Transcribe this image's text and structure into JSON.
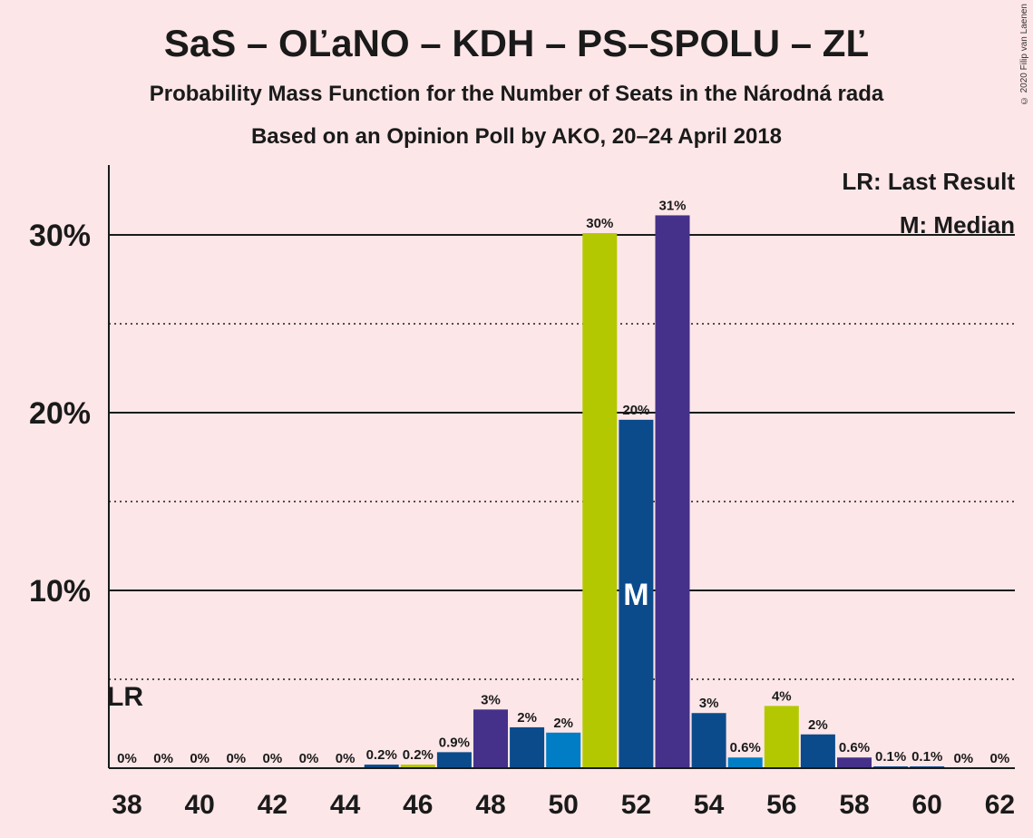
{
  "header": {
    "title": "SaS – OĽaNO – KDH – PS–SPOLU – ZĽ",
    "subtitle": "Probability Mass Function for the Number of Seats in the Národná rada",
    "source": "Based on an Opinion Poll by AKO, 20–24 April 2018",
    "copyright": "© 2020 Filip van Laenen"
  },
  "legend": {
    "lr": "LR: Last Result",
    "m": "M: Median"
  },
  "markers": {
    "last_result": "LR",
    "median": "M",
    "last_result_seats": 38,
    "median_seats": 52
  },
  "colors": {
    "background": "#fde6e8",
    "series": [
      "#453189",
      "#0b4b8c",
      "#007dc5",
      "#b3c800",
      "#0b4b8c"
    ]
  },
  "chart_data": {
    "type": "bar",
    "x": [
      38,
      39,
      40,
      41,
      42,
      43,
      44,
      45,
      46,
      47,
      48,
      49,
      50,
      51,
      52,
      53,
      54,
      55,
      56,
      57,
      58,
      59,
      60,
      61,
      62
    ],
    "values": [
      0,
      0,
      0,
      0,
      0,
      0,
      0,
      0.2,
      0.2,
      0.9,
      3.3,
      2.3,
      2.0,
      30.1,
      19.6,
      31.1,
      3.1,
      0.6,
      3.5,
      1.9,
      0.6,
      0.1,
      0.1,
      0,
      0
    ],
    "labels": [
      "0%",
      "0%",
      "0%",
      "0%",
      "0%",
      "0%",
      "0%",
      "0.2%",
      "0.2%",
      "0.9%",
      "3%",
      "2%",
      "2%",
      "30%",
      "20%",
      "31%",
      "3%",
      "0.6%",
      "4%",
      "2%",
      "0.6%",
      "0.1%",
      "0.1%",
      "0%",
      "0%"
    ],
    "bar_colors": [
      "#453189",
      "#0b4b8c",
      "#007dc5",
      "#b3c800",
      "#0b4b8c",
      "#453189",
      "#0b4b8c",
      "#0b4b8c",
      "#b3c800",
      "#0b4b8c",
      "#453189",
      "#0b4b8c",
      "#007dc5",
      "#b3c800",
      "#0b4b8c",
      "#453189",
      "#0b4b8c",
      "#007dc5",
      "#b3c800",
      "#0b4b8c",
      "#453189",
      "#0b4b8c",
      "#0b4b8c",
      "#b3c800",
      "#0b4b8c"
    ],
    "x_tick_labels": [
      "38",
      "40",
      "42",
      "44",
      "46",
      "48",
      "50",
      "52",
      "54",
      "56",
      "58",
      "60",
      "62"
    ],
    "y_ticks": [
      10,
      20,
      30
    ],
    "y_tick_labels": [
      "10%",
      "20%",
      "30%"
    ],
    "y_minor_ticks": [
      5,
      15,
      25
    ],
    "ylim": [
      0,
      33
    ],
    "grid": true,
    "legend_placement": "top-right"
  }
}
